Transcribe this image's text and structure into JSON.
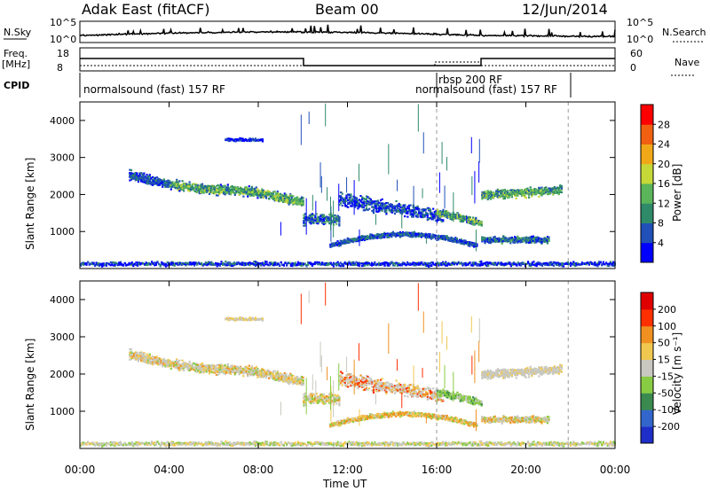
{
  "header": {
    "station": "Adak East (fitACF)",
    "beam": "Beam 00",
    "date": "12/Jun/2014"
  },
  "strip": {
    "nsky_label": "N.Sky",
    "nsky_ticks": [
      "10^5",
      "10^0"
    ],
    "nsearch_label": "N.Search",
    "nsearch_ticks": [
      "10^5",
      "10^0"
    ],
    "freq_label": "Freq.",
    "freq_unit": "[MHz]",
    "freq_ticks": [
      "18",
      "8"
    ],
    "nave_label": "Nave",
    "nave_ticks": [
      "60",
      "0"
    ],
    "cpid_label": "CPID",
    "cpid_segments": [
      {
        "label": "normalsound (fast) 157 RF",
        "start": 0.0,
        "end": 16.0
      },
      {
        "label": "rbsp 200 RF",
        "start": 16.0,
        "end": 18.0
      },
      {
        "label": "normalsound (fast) 157 RF",
        "start": 18.0,
        "end": 24.0
      }
    ]
  },
  "chart_data": [
    {
      "type": "heatmap",
      "name": "power",
      "ylabel": "Slant Range [km]",
      "ylim": [
        0,
        4500
      ],
      "yticks": [
        "1000",
        "2000",
        "3000",
        "4000"
      ],
      "colorbar_label": "Power [dB]",
      "colorbar_ticks": [
        "4",
        "8",
        "12",
        "16",
        "20",
        "24",
        "28"
      ],
      "colors": [
        "#0000ff",
        "#2050b8",
        "#2f8a6a",
        "#5ab55a",
        "#c6d838",
        "#f0a818",
        "#f06010",
        "#ff0000"
      ]
    },
    {
      "type": "heatmap",
      "name": "velocity",
      "ylabel": "Slant Range [km]",
      "ylim": [
        0,
        4500
      ],
      "yticks": [
        "1000",
        "2000",
        "3000",
        "4000"
      ],
      "colorbar_label": "Velocity [m s⁻¹]",
      "colorbar_ticks": [
        "200",
        "100",
        "50",
        "15",
        "-15",
        "-50",
        "-100",
        "-200"
      ],
      "colors": [
        "#1f2ec8",
        "#3366cc",
        "#3a8a50",
        "#88cc44",
        "#c8c8c0",
        "#f0c850",
        "#f09020",
        "#ff3000",
        "#e00000"
      ]
    }
  ],
  "xaxis": {
    "label": "Time UT",
    "ticks": [
      "00:00",
      "04:00",
      "08:00",
      "12:00",
      "16:00",
      "20:00",
      "00:00"
    ]
  }
}
